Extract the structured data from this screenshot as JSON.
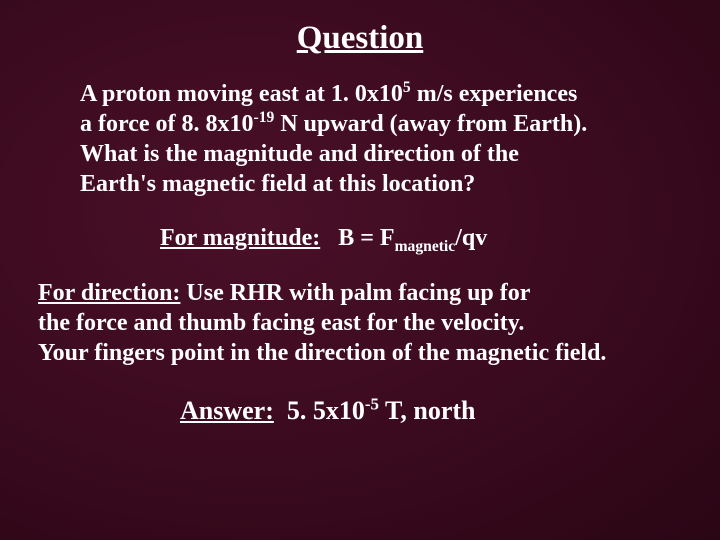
{
  "slide": {
    "background_colors": {
      "center": "#4a1028",
      "mid": "#3a0a1e",
      "edge": "#2a0614"
    },
    "text_color": "#ffffff",
    "font_family": "Times New Roman",
    "title": "Question",
    "question_line1": "A proton moving east at 1. 0x10",
    "question_exp1": "5",
    "question_line1b": " m/s experiences",
    "question_line2a": "a force of 8. 8x10",
    "question_exp2": "-19",
    "question_line2b": " N upward (away from Earth).",
    "question_line3": "What is the magnitude and direction of the",
    "question_line4": "Earth's magnetic field at this location?",
    "magnitude_label": "For magnitude:",
    "magnitude_formula_a": "   B = F",
    "magnitude_sub": "magnetic",
    "magnitude_formula_b": "/qv",
    "direction_label": "For direction:",
    "direction_text1": " Use RHR with palm facing up for",
    "direction_text2": "the force and thumb facing east for the velocity.",
    "direction_text3": "Your fingers point in the direction of the magnetic field.",
    "answer_label": "Answer:",
    "answer_value_a": "  5. 5x10",
    "answer_exp": "-5",
    "answer_value_b": " T, north"
  }
}
